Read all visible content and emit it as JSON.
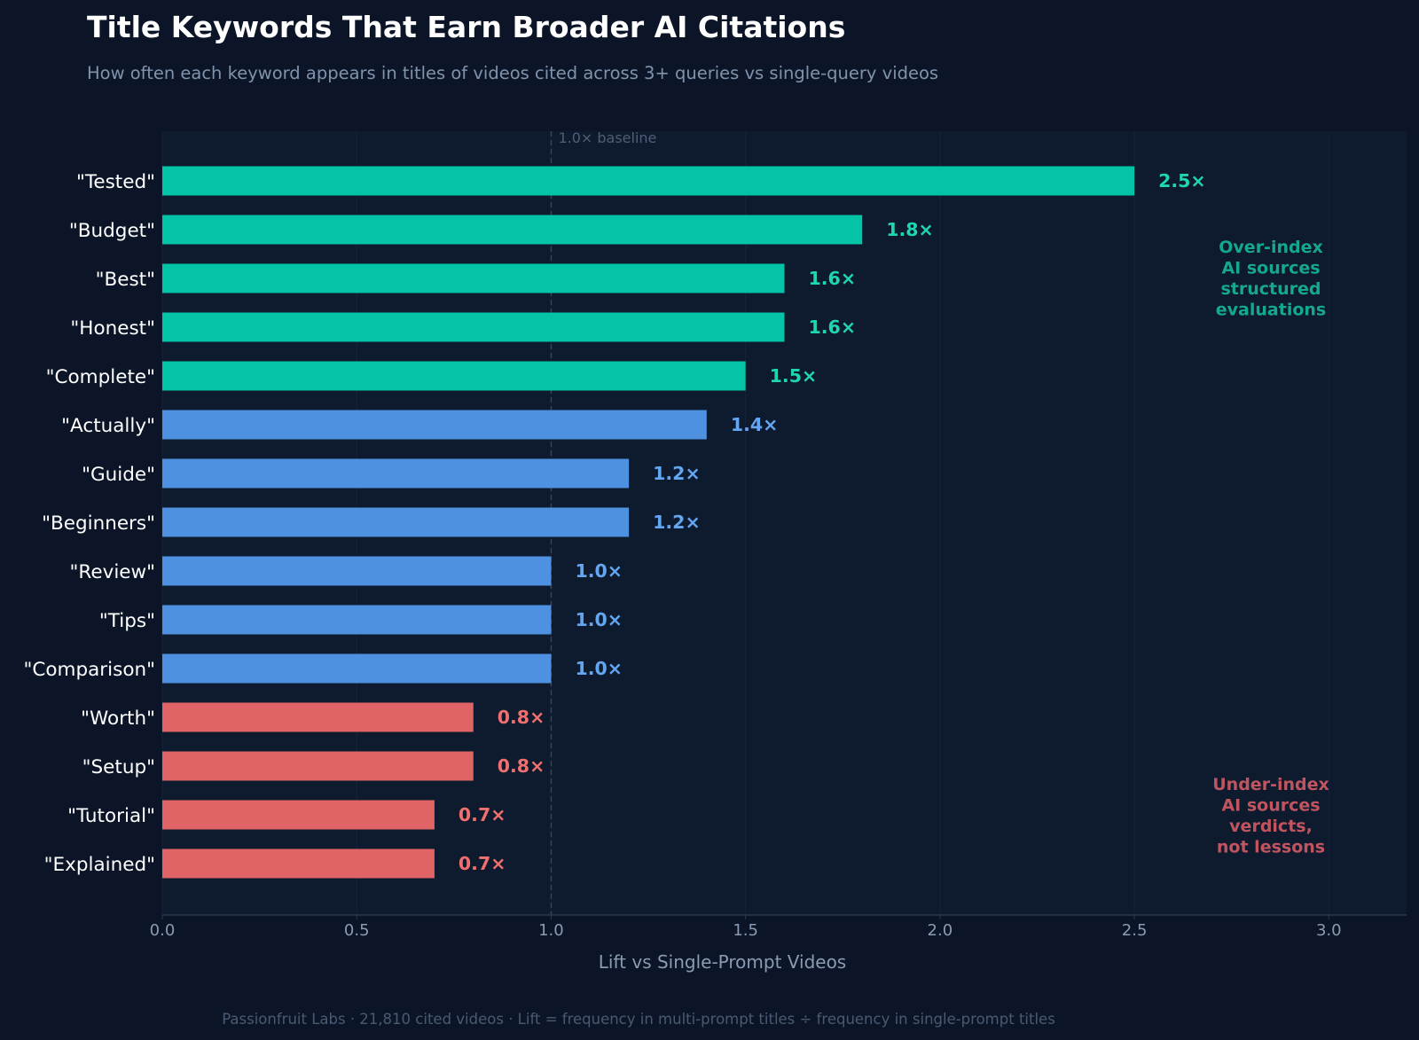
{
  "colors": {
    "background": "#0b1527",
    "plot_background": "#0e1a2e",
    "over_index": "#03c4a6",
    "neutral": "#4d91e0",
    "under_index": "#e06466",
    "over_index_label": "#1fd6b4",
    "neutral_label": "#63a6f2",
    "under_index_label": "#f0706f",
    "over_annotation": "#14a98f",
    "under_annotation": "#c05560"
  },
  "chart_data": {
    "type": "bar",
    "orientation": "horizontal",
    "title": "Title Keywords That Earn Broader AI Citations",
    "subtitle": "How often each keyword appears in titles of videos cited across 3+ queries vs single-query videos",
    "xlabel": "Lift vs Single-Prompt Videos",
    "ylabel": "",
    "xlim": [
      0,
      3.2
    ],
    "xticks": [
      0.0,
      0.5,
      1.0,
      1.5,
      2.0,
      2.5,
      3.0
    ],
    "xtick_labels": [
      "0.0",
      "0.5",
      "1.0",
      "1.5",
      "2.0",
      "2.5",
      "3.0"
    ],
    "grid": true,
    "baseline": {
      "value": 1.0,
      "label": "1.0× baseline"
    },
    "categories": [
      "\"Tested\"",
      "\"Budget\"",
      "\"Best\"",
      "\"Honest\"",
      "\"Complete\"",
      "\"Actually\"",
      "\"Guide\"",
      "\"Beginners\"",
      "\"Review\"",
      "\"Tips\"",
      "\"Comparison\"",
      "\"Worth\"",
      "\"Setup\"",
      "\"Tutorial\"",
      "\"Explained\""
    ],
    "values": [
      2.5,
      1.8,
      1.6,
      1.6,
      1.5,
      1.4,
      1.2,
      1.2,
      1.0,
      1.0,
      1.0,
      0.8,
      0.8,
      0.7,
      0.7
    ],
    "value_labels": [
      "2.5×",
      "1.8×",
      "1.6×",
      "1.6×",
      "1.5×",
      "1.4×",
      "1.2×",
      "1.2×",
      "1.0×",
      "1.0×",
      "1.0×",
      "0.8×",
      "0.8×",
      "0.7×",
      "0.7×"
    ],
    "groups": [
      "over",
      "over",
      "over",
      "over",
      "over",
      "neutral",
      "neutral",
      "neutral",
      "neutral",
      "neutral",
      "neutral",
      "under",
      "under",
      "under",
      "under"
    ],
    "annotations": [
      {
        "group": "over",
        "lines": [
          "Over-index",
          "AI sources",
          "structured",
          "evaluations"
        ]
      },
      {
        "group": "under",
        "lines": [
          "Under-index",
          "AI sources",
          "verdicts,",
          "not lessons"
        ]
      }
    ]
  },
  "footer": "Passionfruit Labs  ·  21,810 cited videos  ·  Lift = frequency in multi-prompt titles ÷ frequency in single-prompt titles"
}
